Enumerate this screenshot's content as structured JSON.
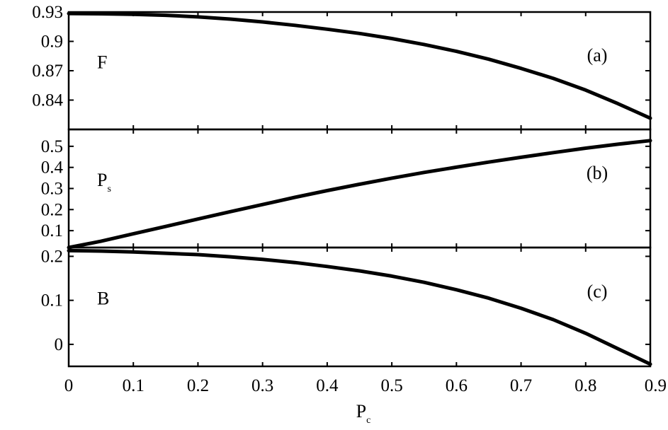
{
  "chart_data": [
    {
      "type": "line",
      "panel_label": "(a)",
      "ylabel": "F",
      "ylabel_sub": "",
      "xlim": [
        0,
        0.9
      ],
      "ylim": [
        0.81,
        0.93
      ],
      "yticks": [
        "0.84",
        "0.87",
        "0.9",
        "0.93"
      ],
      "ytick_values": [
        0.84,
        0.87,
        0.9,
        0.93
      ],
      "grid": false,
      "series": [
        {
          "x": [
            0,
            0.05,
            0.1,
            0.15,
            0.2,
            0.25,
            0.3,
            0.35,
            0.4,
            0.45,
            0.5,
            0.55,
            0.6,
            0.65,
            0.7,
            0.75,
            0.8,
            0.85,
            0.9
          ],
          "y": [
            0.9285,
            0.9282,
            0.9276,
            0.9267,
            0.925,
            0.9228,
            0.9199,
            0.9164,
            0.9124,
            0.9081,
            0.9029,
            0.8968,
            0.8898,
            0.8818,
            0.8724,
            0.8621,
            0.8502,
            0.8363,
            0.8215
          ]
        }
      ]
    },
    {
      "type": "line",
      "panel_label": "(b)",
      "ylabel": "P",
      "ylabel_sub": "s",
      "xlim": [
        0,
        0.9
      ],
      "ylim": [
        0.02,
        0.58
      ],
      "yticks": [
        "0.1",
        "0.2",
        "0.3",
        "0.4",
        "0.5"
      ],
      "ytick_values": [
        0.1,
        0.2,
        0.3,
        0.4,
        0.5
      ],
      "grid": false,
      "series": [
        {
          "x": [
            0,
            0.05,
            0.1,
            0.15,
            0.2,
            0.25,
            0.3,
            0.35,
            0.4,
            0.45,
            0.5,
            0.55,
            0.6,
            0.65,
            0.7,
            0.75,
            0.8,
            0.85,
            0.9
          ],
          "y": [
            0.02,
            0.05,
            0.085,
            0.12,
            0.155,
            0.19,
            0.224,
            0.258,
            0.29,
            0.32,
            0.349,
            0.376,
            0.401,
            0.425,
            0.448,
            0.47,
            0.491,
            0.51,
            0.527
          ]
        }
      ]
    },
    {
      "type": "line",
      "panel_label": "(c)",
      "ylabel": "B",
      "ylabel_sub": "",
      "xlim": [
        0,
        0.9
      ],
      "ylim": [
        -0.05,
        0.22
      ],
      "yticks": [
        "0",
        "0.1",
        "0.2"
      ],
      "ytick_values": [
        0,
        0.1,
        0.2
      ],
      "grid": false,
      "series": [
        {
          "x": [
            0,
            0.05,
            0.1,
            0.15,
            0.2,
            0.25,
            0.3,
            0.35,
            0.4,
            0.45,
            0.5,
            0.55,
            0.6,
            0.65,
            0.7,
            0.75,
            0.8,
            0.85,
            0.9
          ],
          "y": [
            0.213,
            0.212,
            0.21,
            0.207,
            0.204,
            0.199,
            0.193,
            0.186,
            0.177,
            0.167,
            0.155,
            0.141,
            0.124,
            0.105,
            0.082,
            0.056,
            0.025,
            -0.01,
            -0.045
          ]
        }
      ]
    }
  ],
  "xaxis": {
    "label": "P",
    "label_sub": "c",
    "ticks": [
      "0",
      "0.1",
      "0.2",
      "0.3",
      "0.4",
      "0.5",
      "0.6",
      "0.7",
      "0.8",
      "0.9"
    ],
    "tick_values": [
      0,
      0.1,
      0.2,
      0.3,
      0.4,
      0.5,
      0.6,
      0.7,
      0.8,
      0.9
    ]
  }
}
